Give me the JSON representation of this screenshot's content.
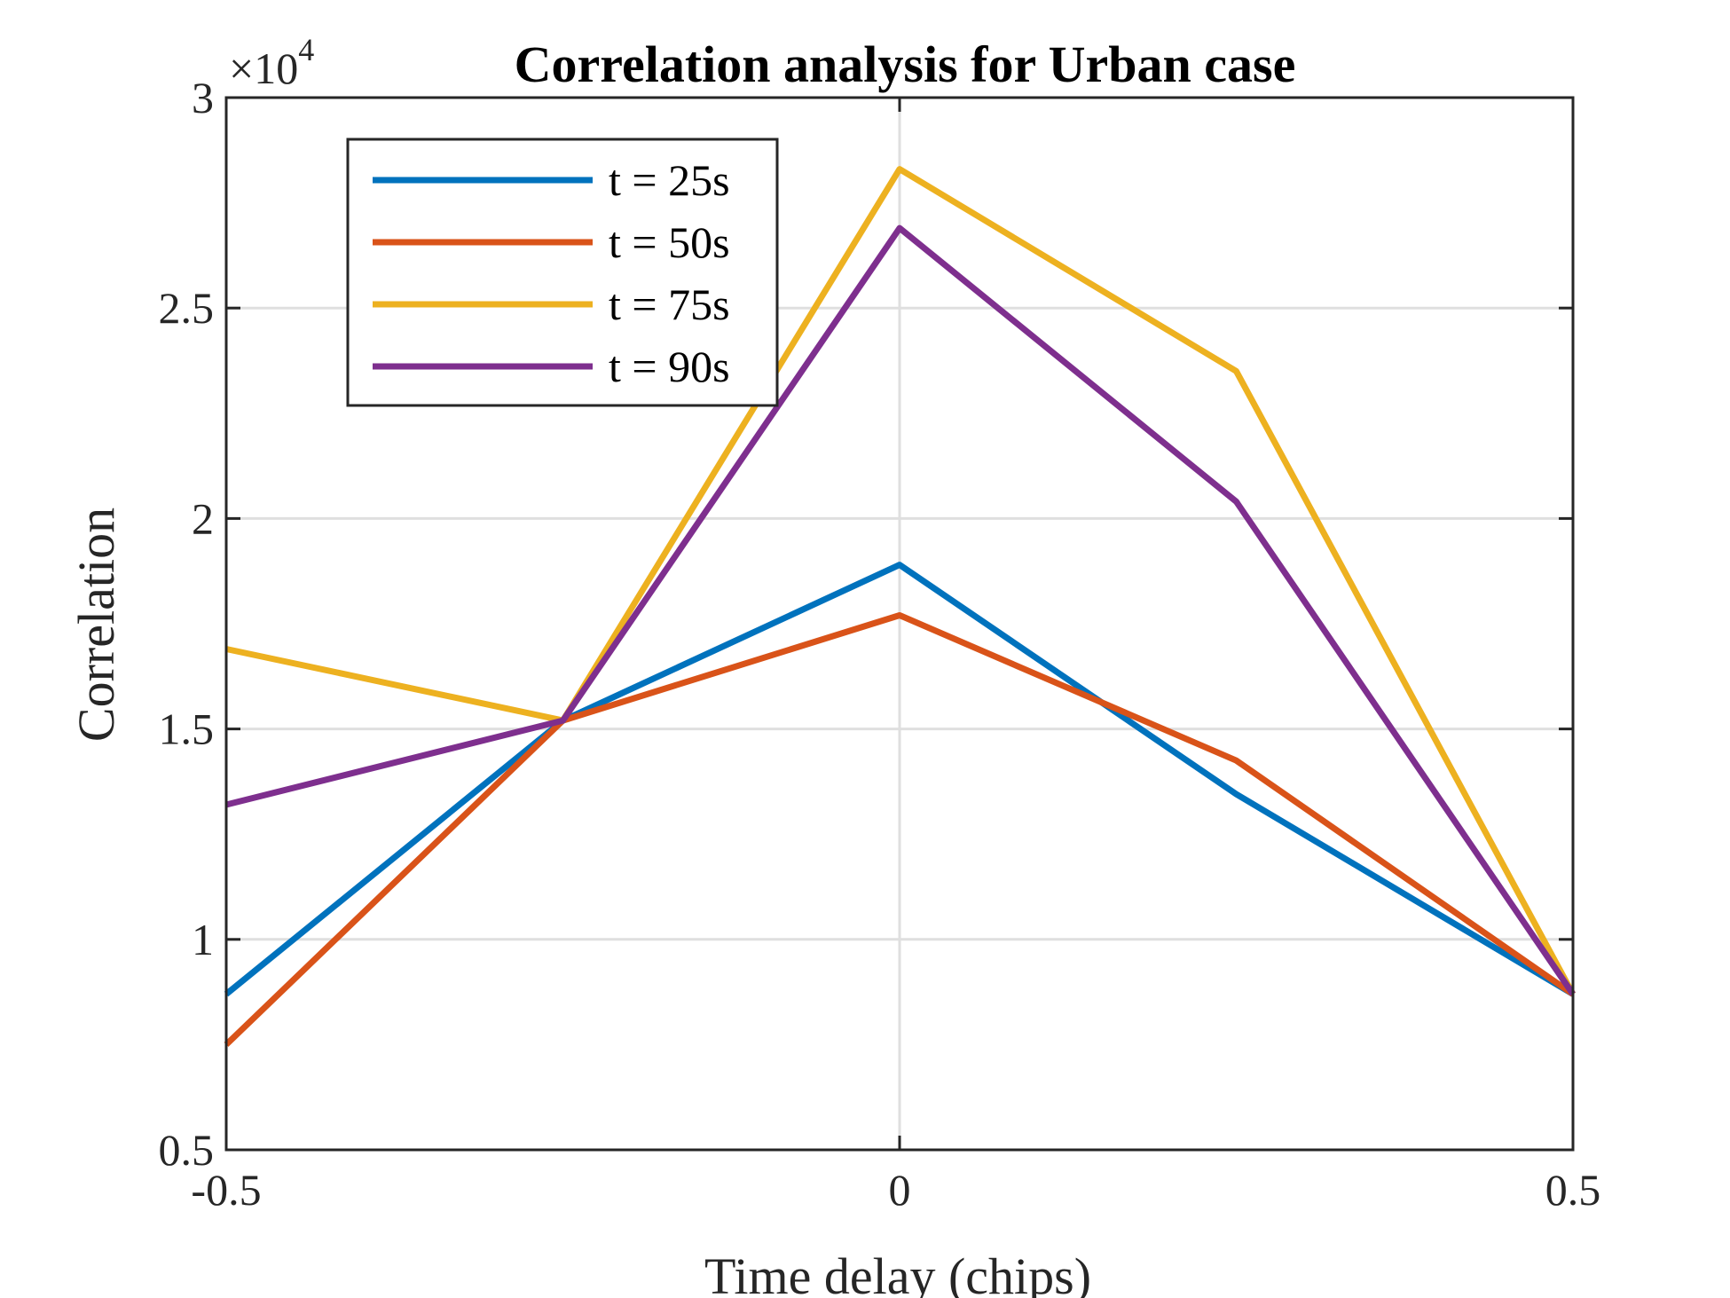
{
  "chart_data": {
    "type": "line",
    "title": "Correlation analysis for Urban case",
    "xlabel": "Time delay (chips)",
    "ylabel": "Correlation",
    "y_multiplier": {
      "base": "×10",
      "exponent": "4"
    },
    "xlim": [
      -0.5,
      0.5
    ],
    "ylim": [
      5000,
      30000
    ],
    "x_ticks": [
      -0.5,
      0,
      0.5
    ],
    "x_tick_labels": [
      "-0.5",
      "0",
      "0.5"
    ],
    "y_ticks": [
      5000,
      10000,
      15000,
      20000,
      25000,
      30000
    ],
    "y_tick_labels": [
      "0.5",
      "1",
      "1.5",
      "2",
      "2.5",
      "3"
    ],
    "grid": true,
    "legend_position": "top-left",
    "x": [
      -0.5,
      -0.25,
      0,
      0.25,
      0.5
    ],
    "series": [
      {
        "name": "t = 25s",
        "color": "#0072BD",
        "values": [
          8700,
          15200,
          18900,
          13450,
          8700
        ]
      },
      {
        "name": "t = 50s",
        "color": "#D95319",
        "values": [
          7500,
          15200,
          17700,
          14250,
          8700
        ]
      },
      {
        "name": "t = 75s",
        "color": "#EDB120",
        "values": [
          16900,
          15200,
          28300,
          23500,
          8700
        ]
      },
      {
        "name": "t = 90s",
        "color": "#7E2F8E",
        "values": [
          13200,
          15200,
          26900,
          20400,
          8700
        ]
      }
    ]
  }
}
